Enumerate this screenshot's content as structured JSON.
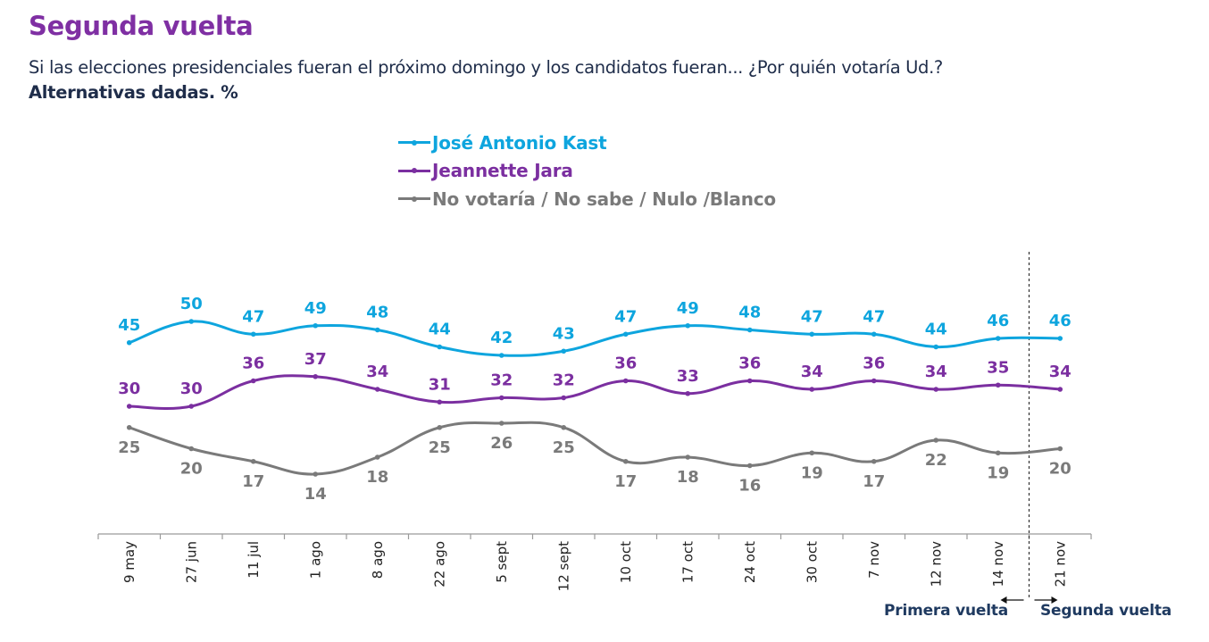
{
  "header": {
    "title": "Segunda vuelta",
    "subtitle": "Si las elecciones presidenciales fueran el próximo domingo y los candidatos fueran... ¿Por quién votaría Ud.?",
    "note": "Alternativas dadas. %"
  },
  "chart_data": {
    "type": "line",
    "title": "Segunda vuelta",
    "subtitle": "Si las elecciones presidenciales fueran el próximo domingo y los candidatos fueran... ¿Por quién votaría Ud.?",
    "xlabel": "",
    "ylabel": "%",
    "ylim": [
      0,
      60
    ],
    "grid": false,
    "legend_position": "top-center",
    "categories": [
      "9 may",
      "27 jun",
      "11 jul",
      "1 ago",
      "8 ago",
      "22 ago",
      "5 sept",
      "12 sept",
      "10 oct",
      "17 oct",
      "24 oct",
      "30 oct",
      "7 nov",
      "12 nov",
      "14 nov",
      "21 nov"
    ],
    "series": [
      {
        "name": "José Antonio Kast",
        "color": "#0ea5de",
        "label_position": "above",
        "values": [
          45,
          50,
          47,
          49,
          48,
          44,
          42,
          43,
          47,
          49,
          48,
          47,
          47,
          44,
          46,
          46
        ]
      },
      {
        "name": "Jeannette Jara",
        "color": "#7b2fa0",
        "label_position": "above",
        "values": [
          30,
          30,
          36,
          37,
          34,
          31,
          32,
          32,
          36,
          33,
          36,
          34,
          36,
          34,
          35,
          34
        ]
      },
      {
        "name": "No votaría / No sabe / Nulo /Blanco",
        "color": "#7a7a7a",
        "label_position": "below",
        "values": [
          25,
          20,
          17,
          14,
          18,
          25,
          26,
          25,
          17,
          18,
          16,
          19,
          17,
          22,
          19,
          20
        ]
      }
    ],
    "annotations": [
      {
        "type": "vertical-divider",
        "between": [
          "14 nov",
          "21 nov"
        ],
        "style": "dashed"
      },
      {
        "text": "Primera vuelta",
        "arrow": "left"
      },
      {
        "text": "Segunda vuelta",
        "arrow": "right"
      }
    ]
  },
  "phases": {
    "first": "Primera vuelta",
    "second": "Segunda vuelta"
  }
}
